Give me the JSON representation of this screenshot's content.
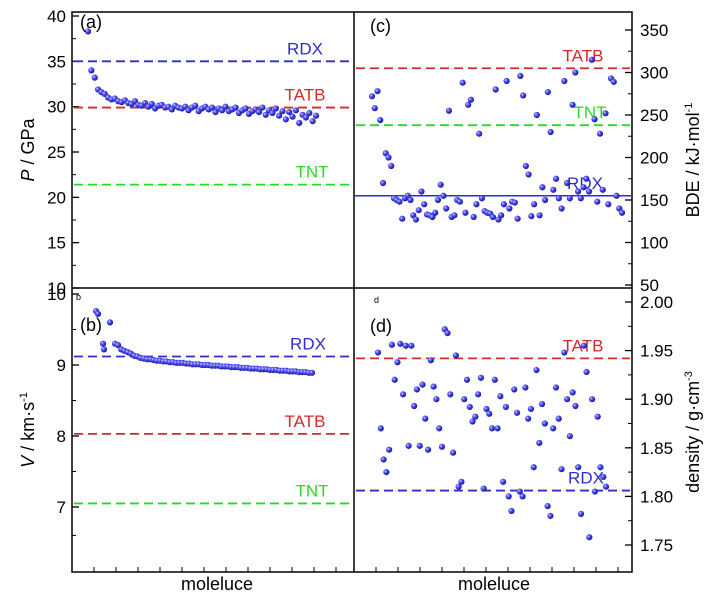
{
  "colors": {
    "RDX": "#2e2ecc",
    "TATB": "#d42a2a",
    "TNT": "#22dd22",
    "point": "#2c2cd8"
  },
  "chart_data": [
    {
      "panel": "a",
      "type": "scatter",
      "panel_label": "(a)",
      "ylabel_italic": "P",
      "ylabel_rest": " / GPa",
      "xlabel": "",
      "ylim": [
        10,
        40
      ],
      "yticks": [
        "10",
        "15",
        "20",
        "25",
        "30",
        "35",
        "40"
      ],
      "ytick_values": [
        10,
        15,
        20,
        25,
        30,
        35,
        40
      ],
      "ref_lines": [
        {
          "name": "RDX",
          "value": 35.0
        },
        {
          "name": "TATB",
          "value": 29.9
        },
        {
          "name": "TNT",
          "value": 21.4
        }
      ],
      "points": [
        38.3,
        34.0,
        33.2,
        31.9,
        31.6,
        31.4,
        31.0,
        30.8,
        30.9,
        30.6,
        30.5,
        30.7,
        30.4,
        30.3,
        30.6,
        30.2,
        30.1,
        30.4,
        30.0,
        30.3,
        29.8,
        30.1,
        30.2,
        29.9,
        30.0,
        29.7,
        30.1,
        29.9,
        29.8,
        30.0,
        29.6,
        29.9,
        30.1,
        29.5,
        29.8,
        30.0,
        29.7,
        29.9,
        29.4,
        29.8,
        29.6,
        30.0,
        29.5,
        29.7,
        29.9,
        29.3,
        29.6,
        29.8,
        29.2,
        29.5,
        29.7,
        29.4,
        29.9,
        29.1,
        29.6,
        29.3,
        29.8,
        29.0,
        29.5,
        28.6,
        29.4,
        28.9,
        29.6,
        28.2,
        29.1,
        28.8,
        29.3,
        28.4,
        29.0
      ]
    },
    {
      "panel": "c",
      "type": "scatter",
      "panel_label": "(c)",
      "ylabel": "BDE / kJ·mol",
      "ylabel_sup": "-1",
      "ylim": [
        50,
        370
      ],
      "yticks": [
        "50",
        "100",
        "150",
        "200",
        "250",
        "300",
        "350"
      ],
      "ytick_values": [
        50,
        100,
        150,
        200,
        250,
        300,
        350
      ],
      "ref_lines": [
        {
          "name": "TATB",
          "value": 305
        },
        {
          "name": "RDX",
          "value": 155
        },
        {
          "name": "TNT",
          "value": 238
        }
      ],
      "points": [
        272,
        258,
        278,
        244,
        170,
        205,
        200,
        190,
        152,
        150,
        148,
        128,
        152,
        155,
        150,
        132,
        127,
        138,
        160,
        145,
        133,
        132,
        130,
        135,
        150,
        168,
        155,
        140,
        255,
        130,
        132,
        150,
        148,
        288,
        135,
        262,
        268,
        130,
        145,
        228,
        152,
        137,
        135,
        134,
        130,
        280,
        127,
        132,
        145,
        290,
        140,
        148,
        147,
        128,
        296,
        273,
        190,
        180,
        131,
        145,
        250,
        132,
        165,
        150,
        277,
        230,
        162,
        175,
        152,
        140,
        290,
        170,
        152,
        262,
        300,
        160,
        152,
        165,
        175,
        160,
        315,
        245,
        148,
        228,
        162,
        252,
        145,
        293,
        289,
        155,
        140,
        135
      ]
    },
    {
      "panel": "b",
      "type": "scatter",
      "panel_label": "(b)",
      "panel_tag": "b",
      "ylabel_italic": "V",
      "ylabel_rest": " / km·s",
      "ylabel_sup": "-1",
      "xlabel": "moleluce",
      "ylim": [
        6,
        10
      ],
      "yticks": [
        "7",
        "8",
        "9",
        "10"
      ],
      "ytick_values": [
        7,
        8,
        9,
        10
      ],
      "ref_lines": [
        {
          "name": "RDX",
          "value": 9.12
        },
        {
          "name": "TATB",
          "value": 8.03
        },
        {
          "name": "TNT",
          "value": 7.05
        }
      ],
      "points": [
        9.76,
        9.6,
        9.3,
        9.28,
        9.22,
        9.2,
        9.18,
        9.16,
        9.13,
        9.12,
        9.1,
        9.09,
        9.08,
        9.08,
        9.07,
        9.06,
        9.06,
        9.05,
        9.05,
        9.04,
        9.04,
        9.03,
        9.03,
        9.03,
        9.02,
        9.02,
        9.01,
        9.01,
        9.01,
        9.0,
        9.0,
        9.0,
        8.99,
        8.99,
        8.99,
        8.98,
        8.98,
        8.98,
        8.97,
        8.97,
        8.97,
        8.96,
        8.96,
        8.96,
        8.95,
        8.95,
        8.95,
        8.94,
        8.94,
        8.94,
        8.93,
        8.93,
        8.93,
        8.92,
        8.92,
        8.92,
        8.91,
        8.91,
        8.91,
        8.9,
        8.9,
        8.9,
        8.89,
        8.89
      ],
      "points_early": [
        9.72,
        9.3,
        9.22
      ]
    },
    {
      "panel": "d",
      "type": "scatter",
      "panel_label": "(d)",
      "panel_tag": "d",
      "ylabel": "density / g·cm",
      "ylabel_sup": "-3",
      "xlabel": "moleluce",
      "ylim": [
        1.73,
        2.015
      ],
      "yticks": [
        "1.75",
        "1.80",
        "1.85",
        "1.90",
        "1.95",
        "2.00"
      ],
      "ytick_values": [
        1.75,
        1.8,
        1.85,
        1.9,
        1.95,
        2.0
      ],
      "ref_lines": [
        {
          "name": "TATB",
          "value": 1.942
        },
        {
          "name": "RDX",
          "value": 1.806
        }
      ],
      "points": [
        1.948,
        1.87,
        1.838,
        1.825,
        1.848,
        1.956,
        1.92,
        1.938,
        1.957,
        1.905,
        1.955,
        1.852,
        1.955,
        1.893,
        1.91,
        1.852,
        1.915,
        1.88,
        1.848,
        1.94,
        1.913,
        1.9,
        1.87,
        1.851,
        1.972,
        1.968,
        1.905,
        1.845,
        1.945,
        1.81,
        1.815,
        1.9,
        1.92,
        1.892,
        1.877,
        1.882,
        1.905,
        1.922,
        1.808,
        1.89,
        1.885,
        1.87,
        1.92,
        1.87,
        1.903,
        1.815,
        1.892,
        1.8,
        1.785,
        1.91,
        1.886,
        1.805,
        1.8,
        1.912,
        1.88,
        1.89,
        1.83,
        1.93,
        1.855,
        1.895,
        1.875,
        1.79,
        1.78,
        1.87,
        1.912,
        1.88,
        1.828,
        1.948,
        1.9,
        1.862,
        1.907,
        1.893,
        1.83,
        1.782,
        1.955,
        1.928,
        1.758,
        1.9,
        1.805,
        1.882,
        1.83,
        1.82,
        1.81
      ]
    }
  ],
  "xlabels": {
    "left": "moleluce",
    "right": "moleluce"
  }
}
